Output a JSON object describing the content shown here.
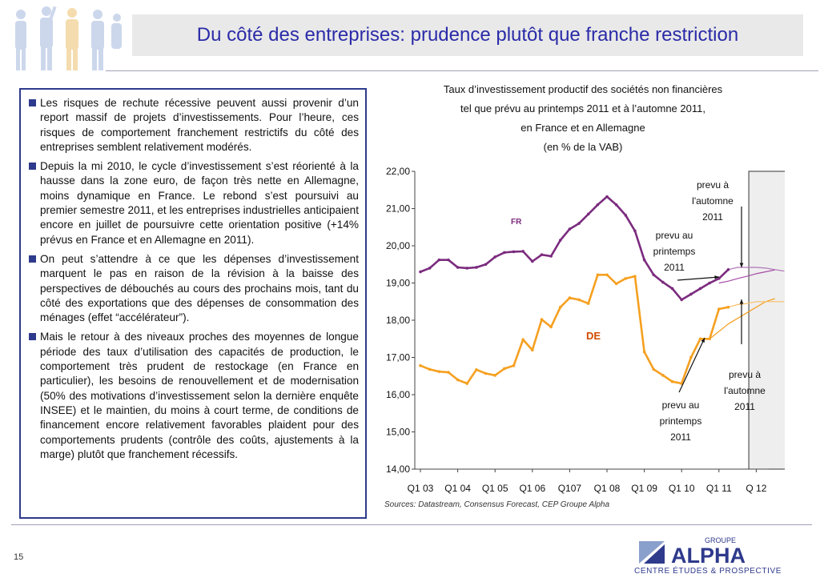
{
  "slide": {
    "title": "Du côté des entreprises: prudence plutôt que franche restriction",
    "page_number": "15",
    "source": "Sources: Datastream, Consensus Forecast, CEP Groupe Alpha",
    "paragraphs": [
      "Les risques de rechute récessive peuvent aussi provenir d’un report massif de projets d’investissements. Pour l’heure, ces risques de comportement franchement restrictifs du côté des entreprises semblent relativement modérés.",
      "Depuis la mi 2010, le cycle d’investissement s’est réorienté à la hausse dans la zone euro, de façon très nette en Allemagne, moins dynamique en France. Le rebond s’est poursuivi au premier semestre 2011, et les entreprises industrielles anticipaient encore en juillet de poursuivre cette orientation positive (+14% prévus en France et en Allemagne en 2011).",
      "On peut s’attendre à ce que les dépenses d’investissement marquent le pas en raison de la révision à la baisse des perspectives de débouchés au cours des prochains mois, tant du côté des exportations que des dépenses de consommation des ménages (effet “accélérateur”).",
      " Mais le retour à  des niveaux proches des moyennes de longue période des taux d’utilisation des capacités de production, le comportement très prudent de restockage (en France en particulier), les besoins de renouvellement et de modernisation (50% des motivations d’investissement selon la dernière enquête INSEE) et le maintien, du moins à court terme, de conditions de financement encore relativement favorables plaident pour des comportements prudents (contrôle des coûts, ajustements à la marge)  plutôt que franchement récessifs."
    ],
    "logo": {
      "top": "GROUPE",
      "main": "ALPHA",
      "sub": "CENTRE ÉTUDES & PROSPECTIVE"
    }
  },
  "chart_data": {
    "type": "line",
    "title_lines": [
      "Taux d’investissement productif des sociétés non financières",
      "tel que prévu au printemps 2011 et à l’automne 2011,",
      "en France et en Allemagne",
      "(en % de la VAB)"
    ],
    "ylim": [
      14,
      22
    ],
    "yticks": [
      "14,00",
      "15,00",
      "16,00",
      "17,00",
      "18,00",
      "19,00",
      "20,00",
      "21,00",
      "22,00"
    ],
    "x_tick_labels": [
      "Q1 03",
      "Q1 04",
      "Q1 05",
      "Q1 06",
      "Q107",
      "Q1 08",
      "Q1 09",
      "Q1 10",
      "Q1 11",
      "Q 12"
    ],
    "x_start_year": 2003,
    "series": [
      {
        "name": "FR",
        "color": "#7b2b7e",
        "start": 0,
        "values": [
          19.3,
          19.4,
          19.62,
          19.62,
          19.42,
          19.4,
          19.42,
          19.5,
          19.7,
          19.82,
          19.84,
          19.85,
          19.58,
          19.76,
          19.72,
          20.15,
          20.45,
          20.6,
          20.85,
          21.1,
          21.32,
          21.1,
          20.82,
          20.4,
          19.62,
          19.22,
          19.02,
          18.85,
          18.55,
          18.7,
          18.85,
          19.0,
          19.12,
          19.36
        ]
      },
      {
        "name": "DE",
        "color": "#f5a020",
        "start": 0,
        "values": [
          16.78,
          16.68,
          16.62,
          16.6,
          16.4,
          16.3,
          16.67,
          16.57,
          16.52,
          16.7,
          16.78,
          17.48,
          17.2,
          18.02,
          17.82,
          18.35,
          18.6,
          18.55,
          18.45,
          19.22,
          19.22,
          18.98,
          19.12,
          19.18,
          17.15,
          16.68,
          16.52,
          16.35,
          16.3,
          17.0,
          17.5,
          17.5,
          18.3,
          18.35
        ]
      }
    ],
    "forecasts": [
      {
        "series": "FR",
        "label": "prevu au printemps 2011",
        "color": "#a64ca6",
        "start": 32,
        "values": [
          19.0,
          19.05,
          19.12,
          19.18,
          19.25,
          19.3,
          19.35
        ]
      },
      {
        "series": "FR",
        "label": "prevu à l'automne 2011",
        "color": "#b078b8",
        "start": 33,
        "values": [
          19.36,
          19.42,
          19.42,
          19.42,
          19.4,
          19.36,
          19.32
        ]
      },
      {
        "series": "DE",
        "label": "prevu au printemps 2011",
        "color": "#f5a020",
        "start": 31,
        "values": [
          17.5,
          17.7,
          17.9,
          18.05,
          18.2,
          18.35,
          18.5,
          18.58
        ]
      },
      {
        "series": "DE",
        "label": "prevu à l'automne 2011",
        "color": "#f7c06a",
        "start": 33,
        "values": [
          18.35,
          18.42,
          18.45,
          18.5,
          18.5,
          18.5,
          18.5
        ]
      }
    ],
    "series_labels": {
      "FR": "FR",
      "DE": "DE"
    },
    "annotations": {
      "fr_autumn": [
        "prevu à",
        "l'automne",
        "2011"
      ],
      "fr_spring": [
        "prevu au",
        "printemps",
        "2011"
      ],
      "de_autumn": [
        "prevu à",
        "l'automne",
        "2011"
      ],
      "de_spring": [
        "prevu au",
        "printemps",
        "2011"
      ]
    },
    "forecast_shading": "Q4 2011 – Q4 2012",
    "grid": false,
    "legend": "inline"
  }
}
